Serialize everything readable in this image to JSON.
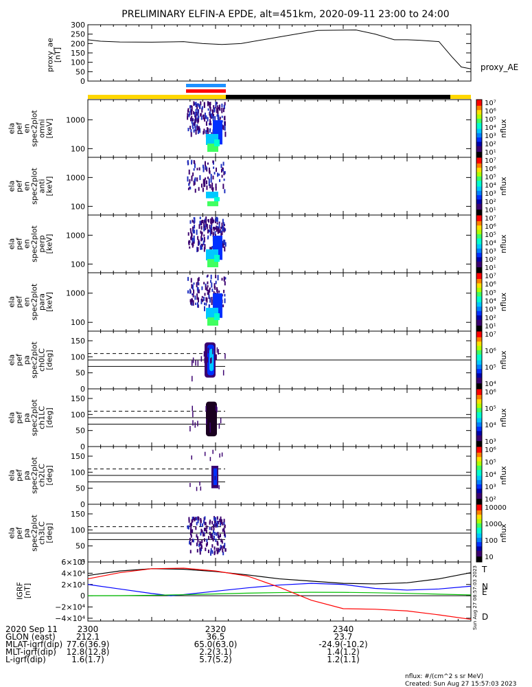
{
  "title": "PRELIMINARY ELFIN-A EPDE, alt=451km, 2020-09-11 23:00 to 24:00",
  "colors": {
    "axis": "#000000",
    "state_yellow": "#ffd700",
    "state_black": "#000000",
    "bar_blue": "#1e90ff",
    "bar_red": "#ff0000",
    "igrf_T": "#000000",
    "igrf_N": "#0000ff",
    "igrf_E": "#00c000",
    "igrf_D": "#ff0000"
  },
  "chart_data": [
    {
      "id": "proxy_ae",
      "type": "line",
      "ylabel_lines": [
        "proxy_ae",
        "[nT]"
      ],
      "legend": "proxy_AE",
      "ylim": [
        0,
        300
      ],
      "yticks": [
        "0",
        "50",
        "100",
        "150",
        "200",
        "250",
        "300"
      ],
      "xlim": [
        0,
        60
      ],
      "x": [
        0,
        2,
        5,
        10,
        15,
        18,
        21,
        24,
        30,
        36,
        42,
        45,
        48,
        50,
        52,
        55,
        57,
        58.5,
        60
      ],
      "y": [
        220,
        212,
        208,
        207,
        210,
        200,
        195,
        200,
        235,
        270,
        272,
        250,
        220,
        220,
        217,
        210,
        130,
        75,
        65
      ]
    },
    {
      "id": "spec_omni",
      "type": "heatmap",
      "ylabel_lines": [
        "ela",
        "pef",
        "en",
        "spec2plot",
        "omni",
        "[keV]"
      ],
      "yticks": [
        "100",
        "1000"
      ],
      "colorbar_ticks": [
        "10⁷",
        "10⁶",
        "10⁵",
        "10⁴",
        "10³",
        "10²",
        "10¹"
      ],
      "colorbar_label": "nflux"
    },
    {
      "id": "spec_anti",
      "type": "heatmap",
      "ylabel_lines": [
        "ela",
        "pef",
        "en",
        "spec2plot",
        "anti",
        "[keV]"
      ],
      "yticks": [
        "100",
        "1000"
      ],
      "colorbar_ticks": [
        "10⁷",
        "10⁶",
        "10⁵",
        "10⁴",
        "10³",
        "10²",
        "10¹"
      ],
      "colorbar_label": "nflux"
    },
    {
      "id": "spec_perp",
      "type": "heatmap",
      "ylabel_lines": [
        "ela",
        "pef",
        "en",
        "spec2plot",
        "perp",
        "[keV]"
      ],
      "yticks": [
        "100",
        "1000"
      ],
      "colorbar_ticks": [
        "10⁷",
        "10⁶",
        "10⁵",
        "10⁴",
        "10³",
        "10²",
        "10¹"
      ],
      "colorbar_label": "nflux"
    },
    {
      "id": "spec_para",
      "type": "heatmap",
      "ylabel_lines": [
        "ela",
        "pef",
        "en",
        "spec2plot",
        "para",
        "[keV]"
      ],
      "yticks": [
        "100",
        "1000"
      ],
      "colorbar_ticks": [
        "10⁷",
        "10⁶",
        "10⁵",
        "10⁴",
        "10³",
        "10²",
        "10¹"
      ],
      "colorbar_label": "nflux"
    },
    {
      "id": "pa_ch0",
      "type": "heatmap",
      "ylabel_lines": [
        "ela",
        "pef",
        "pa",
        "spec2plot",
        "ch0LC",
        "[deg]"
      ],
      "yticks": [
        "0",
        "50",
        "100",
        "150"
      ],
      "ylim": [
        0,
        180
      ],
      "colorbar_ticks": [
        "10⁷",
        "10⁶",
        "10⁵",
        "10⁴"
      ],
      "colorbar_label": "nflux"
    },
    {
      "id": "pa_ch1",
      "type": "heatmap",
      "ylabel_lines": [
        "ela",
        "pef",
        "pa",
        "spec2plot",
        "ch1LC",
        "[deg]"
      ],
      "yticks": [
        "0",
        "50",
        "100",
        "150"
      ],
      "ylim": [
        0,
        180
      ],
      "colorbar_ticks": [
        "10⁶",
        "10⁵",
        "10⁴",
        "10³"
      ],
      "colorbar_label": "nflux"
    },
    {
      "id": "pa_ch2",
      "type": "heatmap",
      "ylabel_lines": [
        "ela",
        "pef",
        "pa",
        "spec2plot",
        "ch2LC",
        "[deg]"
      ],
      "yticks": [
        "0",
        "50",
        "100",
        "150"
      ],
      "ylim": [
        0,
        180
      ],
      "colorbar_ticks": [
        "10⁶",
        "10⁵",
        "10⁴",
        "10³",
        "10²"
      ],
      "colorbar_label": "nflux"
    },
    {
      "id": "pa_ch3",
      "type": "heatmap",
      "ylabel_lines": [
        "ela",
        "pef",
        "pa",
        "spec2plot",
        "ch3LC",
        "[deg]"
      ],
      "yticks": [
        "0",
        "50",
        "100",
        "150"
      ],
      "ylim": [
        0,
        180
      ],
      "colorbar_ticks": [
        "10000",
        "1000",
        "100",
        "10"
      ],
      "colorbar_label": "nflux"
    },
    {
      "id": "igrf",
      "type": "line",
      "ylabel_lines": [
        "IGRF",
        "[nT]"
      ],
      "ylim": [
        -45000,
        60000
      ],
      "yticks": [
        "−4×10⁴",
        "−2×10⁴",
        "0",
        "2×10⁴",
        "4×10⁴",
        "6×10⁴"
      ],
      "ytick_values": [
        -40000,
        -20000,
        0,
        20000,
        40000,
        60000
      ],
      "xlim": [
        0,
        60
      ],
      "series": [
        {
          "name": "T",
          "color": "#000000",
          "x": [
            0,
            5,
            10,
            15,
            20,
            25,
            30,
            35,
            40,
            45,
            50,
            55,
            60
          ],
          "y": [
            36000,
            44000,
            48000,
            47000,
            43000,
            37000,
            30000,
            26000,
            22000,
            21000,
            23000,
            30000,
            41000
          ]
        },
        {
          "name": "N",
          "color": "#0000ff",
          "x": [
            0,
            5,
            10,
            13,
            15,
            20,
            25,
            30,
            35,
            40,
            45,
            50,
            55,
            60
          ],
          "y": [
            20000,
            12000,
            4000,
            0,
            2000,
            8000,
            14000,
            19000,
            22000,
            20000,
            13000,
            10000,
            12000,
            17000
          ]
        },
        {
          "name": "E",
          "color": "#00c000",
          "x": [
            0,
            5,
            10,
            15,
            20,
            25,
            30,
            35,
            40,
            45,
            50,
            55,
            60
          ],
          "y": [
            0,
            200,
            800,
            1800,
            3200,
            4600,
            5600,
            6100,
            6000,
            5300,
            4200,
            2800,
            1500
          ]
        },
        {
          "name": "D",
          "color": "#ff0000",
          "x": [
            0,
            5,
            10,
            15,
            20,
            25,
            30,
            35,
            40,
            45,
            50,
            55,
            60
          ],
          "y": [
            30000,
            41000,
            48000,
            49000,
            44000,
            35000,
            15000,
            -8000,
            -23000,
            -24000,
            -27000,
            -34000,
            -42000
          ]
        }
      ]
    }
  ],
  "xaxis": {
    "ticks": [
      "2300",
      "2320",
      "2340"
    ],
    "tick_minutes": [
      0,
      20,
      40
    ],
    "rows": [
      {
        "label": "2020 Sep 11",
        "values": [
          "2300",
          "2320",
          "2340"
        ]
      },
      {
        "label": "GLON (east)",
        "values": [
          "212.1",
          "36.5",
          "23.7"
        ]
      },
      {
        "label": "MLAT-igrf(dip)",
        "values": [
          "77.6(36.9)",
          "65.0(63.0)",
          "-24.9(-10.2)"
        ]
      },
      {
        "label": "MLT-igrf(dip)",
        "values": [
          "12.8(12.8)",
          "2.2(3.1)",
          "1.4(1.2)"
        ]
      },
      {
        "label": "L-igrf(dip)",
        "values": [
          "1.6(1.7)",
          "5.7(5.2)",
          "1.2(1.1)"
        ]
      }
    ]
  },
  "footer": {
    "units": "nflux: #/(cm^2 s sr MeV)",
    "created": "Created: Sun Aug 27 15:57:03 2023",
    "vertical_stamp": "Sun Aug 27 08:57:03 2023"
  }
}
